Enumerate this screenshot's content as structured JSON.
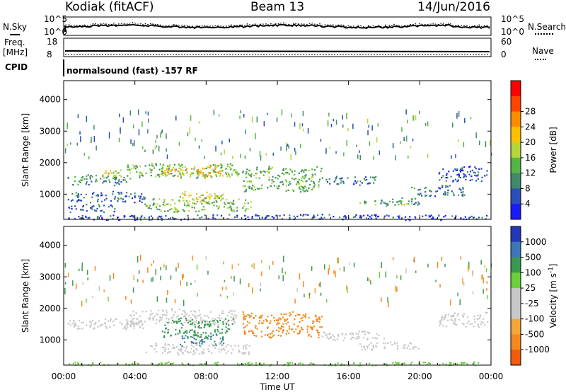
{
  "header": {
    "station": "Kodiak (fitACF)",
    "beam": "Beam 13",
    "date": "14/Jun/2016"
  },
  "strip_panels": {
    "nsky_label": "N.Sky",
    "nsearch_label": "N.Search",
    "exp_top": "10^5",
    "exp_bottom": "10^0",
    "freq_label_1": "Freq.",
    "freq_label_2": "[MHz]",
    "freq_top": "18",
    "freq_bottom": "8",
    "nave_label": "Nave",
    "nave_top": "60",
    "nave_bottom": "0",
    "cpid_label": "CPID",
    "cpid_text": "normalsound (fast) -157 RF"
  },
  "colors": {
    "power": [
      "#1a1aff",
      "#2a4fb8",
      "#3f8a6a",
      "#55b544",
      "#b5d53a",
      "#ffc000",
      "#ff8c00",
      "#ff4500",
      "#ff0000"
    ],
    "velocity": [
      "#e8141e",
      "#f25c0a",
      "#f5891f",
      "#f4a63a",
      "#c8c8c8",
      "#c8c8c8",
      "#6ccf3c",
      "#3a9a52",
      "#3e77b8",
      "#2437b8"
    ]
  },
  "chart_data": [
    {
      "type": "heatmap",
      "name": "power",
      "ylabel": "Slant Range [km]",
      "xlabel": "",
      "x_ticks": [
        "00:00",
        "04:00",
        "08:00",
        "12:00",
        "16:00",
        "20:00",
        "00:00"
      ],
      "y_ticks": [
        "1000",
        "2000",
        "3000",
        "4000"
      ],
      "ylim": [
        200,
        4600
      ],
      "xlim_hours": [
        0,
        24
      ],
      "colorbar_label": "Power [dB]",
      "colorbar_ticks": [
        "4",
        "8",
        "12",
        "16",
        "20",
        "24",
        "28"
      ],
      "regions": [
        {
          "t0": 0.2,
          "t1": 3.5,
          "r0": 1300,
          "r1": 1650,
          "v": 10
        },
        {
          "t0": 1.8,
          "t1": 3.2,
          "r0": 1500,
          "r1": 1800,
          "v": 17
        },
        {
          "t0": 3.5,
          "t1": 9.8,
          "r0": 1500,
          "r1": 2000,
          "v": 14
        },
        {
          "t0": 5.5,
          "t1": 9.0,
          "r0": 1550,
          "r1": 1950,
          "v": 22
        },
        {
          "t0": 6.5,
          "t1": 9.0,
          "r0": 750,
          "r1": 1100,
          "v": 20
        },
        {
          "t0": 4.5,
          "t1": 10.5,
          "r0": 450,
          "r1": 900,
          "v": 15
        },
        {
          "t0": 0.2,
          "t1": 4.5,
          "r0": 750,
          "r1": 1100,
          "v": 8
        },
        {
          "t0": 0.2,
          "t1": 3.0,
          "r0": 450,
          "r1": 700,
          "v": 7
        },
        {
          "t0": 10.0,
          "t1": 14.5,
          "r0": 1100,
          "r1": 1900,
          "v": 13
        },
        {
          "t0": 14.5,
          "t1": 17.5,
          "r0": 1300,
          "r1": 1600,
          "v": 8
        },
        {
          "t0": 16.5,
          "t1": 20.0,
          "r0": 650,
          "r1": 900,
          "v": 12
        },
        {
          "t0": 19.5,
          "t1": 22.5,
          "r0": 950,
          "r1": 1300,
          "v": 8
        },
        {
          "t0": 21.0,
          "t1": 23.8,
          "r0": 1400,
          "r1": 1900,
          "v": 6
        },
        {
          "t0": 0.2,
          "t1": 23.8,
          "r0": 200,
          "r1": 380,
          "v": 5
        }
      ]
    },
    {
      "type": "heatmap",
      "name": "velocity",
      "ylabel": "Slant Range [km]",
      "xlabel": "Time UT",
      "x_ticks": [
        "00:00",
        "04:00",
        "08:00",
        "12:00",
        "16:00",
        "20:00",
        "00:00"
      ],
      "y_ticks": [
        "1000",
        "2000",
        "3000",
        "4000"
      ],
      "ylim": [
        200,
        4600
      ],
      "xlim_hours": [
        0,
        24
      ],
      "colorbar_label": "Velocity [m s^-1]",
      "colorbar_ticks": [
        "1000",
        "500",
        "100",
        "25",
        "-25",
        "-100",
        "-500",
        "-1000"
      ],
      "regions": [
        {
          "t0": 0.2,
          "t1": 4.5,
          "r0": 1350,
          "r1": 1700,
          "v": 0
        },
        {
          "t0": 3.5,
          "t1": 9.8,
          "r0": 1500,
          "r1": 2000,
          "v": 0
        },
        {
          "t0": 5.5,
          "t1": 9.5,
          "r0": 1100,
          "r1": 1700,
          "v": 200
        },
        {
          "t0": 6.5,
          "t1": 9.0,
          "r0": 800,
          "r1": 1200,
          "v": 700
        },
        {
          "t0": 4.5,
          "t1": 10.5,
          "r0": 550,
          "r1": 900,
          "v": 0
        },
        {
          "t0": 10.0,
          "t1": 14.5,
          "r0": 1100,
          "r1": 1900,
          "v": -300
        },
        {
          "t0": 14.5,
          "t1": 18.0,
          "r0": 1000,
          "r1": 1300,
          "v": 0
        },
        {
          "t0": 16.5,
          "t1": 20.0,
          "r0": 700,
          "r1": 950,
          "v": 0
        },
        {
          "t0": 21.0,
          "t1": 23.8,
          "r0": 1400,
          "r1": 1900,
          "v": 0
        },
        {
          "t0": 0.2,
          "t1": 23.8,
          "r0": 200,
          "r1": 320,
          "v": 60
        }
      ]
    }
  ]
}
